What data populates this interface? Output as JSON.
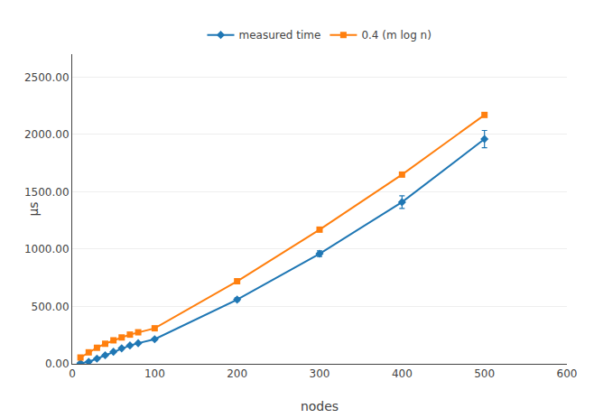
{
  "chart_data": {
    "type": "line",
    "x": [
      10,
      20,
      30,
      40,
      50,
      60,
      70,
      80,
      100,
      200,
      300,
      400,
      500
    ],
    "series": [
      {
        "name": "measured time",
        "marker": "diamond",
        "values": [
          5,
          18,
          45,
          75,
          105,
          135,
          160,
          180,
          215,
          560,
          960,
          1410,
          1960
        ],
        "yerr": [
          3,
          3,
          3,
          3,
          3,
          3,
          3,
          3,
          8,
          15,
          25,
          55,
          75
        ]
      },
      {
        "name": "0.4 (m log n)",
        "marker": "square",
        "values": [
          55,
          100,
          140,
          175,
          205,
          230,
          255,
          275,
          310,
          720,
          1170,
          1650,
          2170
        ]
      }
    ],
    "xlabel": "nodes",
    "ylabel": "μs",
    "xlim": [
      0,
      600
    ],
    "ylim": [
      0,
      2700
    ],
    "xticks": [
      0,
      100,
      200,
      300,
      400,
      500,
      600
    ],
    "yticks": [
      {
        "value": 0,
        "label": "0.00"
      },
      {
        "value": 500,
        "label": "500.00"
      },
      {
        "value": 1000,
        "label": "1000.00"
      },
      {
        "value": 1500,
        "label": "1500.00"
      },
      {
        "value": 2000,
        "label": "2000.00"
      },
      {
        "value": 2500,
        "label": "2500.00"
      }
    ],
    "grid": "y",
    "legend": "top"
  }
}
